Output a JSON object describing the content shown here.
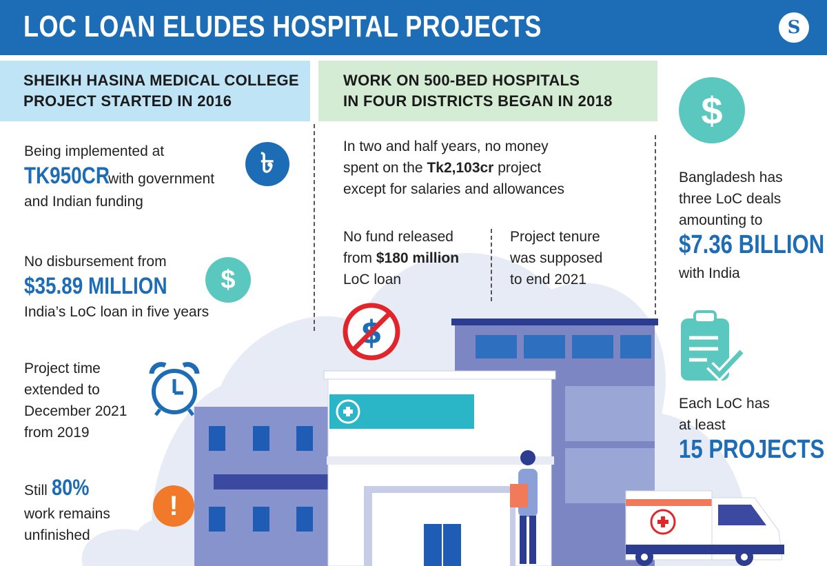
{
  "header": {
    "title": "LOC LOAN ELUDES HOSPITAL PROJECTS",
    "logo_letter": "S"
  },
  "left": {
    "heading": [
      "SHEIKH HASINA MEDICAL COLLEGE",
      "PROJECT STARTED IN 2016"
    ],
    "block1": {
      "pre": "Being implemented at",
      "big": "TK950CR",
      "post1": "with government",
      "post2": "and Indian funding",
      "icon": "taka-icon"
    },
    "block2": {
      "pre": "No disbursement from",
      "big": "$35.89 MILLION",
      "post": "India’s  LoC loan in five years",
      "icon": "dollar-icon"
    },
    "block3": {
      "lines": [
        "Project time",
        "extended to",
        "December 2021",
        "from 2019"
      ],
      "icon": "alarm-clock-icon"
    },
    "block4": {
      "pre": "Still",
      "big": "80%",
      "l2": "work remains",
      "l3": "unfinished",
      "icon": "exclamation-icon"
    }
  },
  "middle": {
    "heading": [
      "WORK ON 500-BED HOSPITALS",
      "IN FOUR DISTRICTS BEGAN IN 2018"
    ],
    "para_l1": "In two and half years, no money",
    "para_l2a": "spent on the ",
    "para_l2b": "Tk2,103cr",
    "para_l2c": " project",
    "para_l3": "except  for salaries and allowances",
    "fund": {
      "l1": "No fund released",
      "l2a": "from ",
      "l2b": "$180 million",
      "l3": "LoC loan"
    },
    "tenure": [
      "Project tenure",
      "was supposed",
      "to end 2021"
    ]
  },
  "right": {
    "deals": [
      "Bangladesh has",
      "three LoC deals",
      "amounting to"
    ],
    "big": "$7.36 BILLION",
    "post": "with India",
    "each": [
      "Each LoC has",
      "at least"
    ],
    "projects": "15 PROJECTS"
  },
  "colors": {
    "brand": "#1c6cb6",
    "teal": "#5bc8c0",
    "orange": "#f07a2a",
    "red": "#e0262b"
  }
}
